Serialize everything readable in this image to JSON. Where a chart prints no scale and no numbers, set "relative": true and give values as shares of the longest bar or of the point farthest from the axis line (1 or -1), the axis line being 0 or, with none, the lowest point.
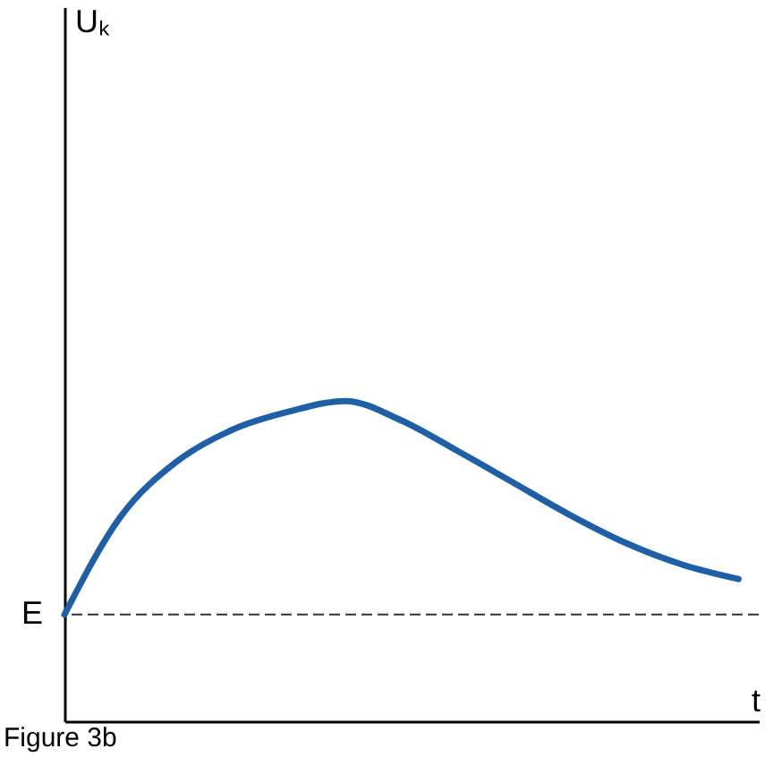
{
  "chart_data": {
    "type": "line",
    "relative": true,
    "xlabel": "t",
    "categories": [
      null,
      null,
      null,
      null,
      null,
      null,
      null,
      null,
      null,
      null,
      null,
      null,
      null
    ],
    "series": [
      {
        "color": "#1f5fa6",
        "values": [
          0.333,
          0.639,
          0.811,
          0.911,
          0.967,
          1,
          0.939,
          0.844,
          0.744,
          0.644,
          0.556,
          0.489,
          0.444
        ]
      }
    ],
    "ref_lines": [
      {
        "axis": "y",
        "value": 0.333,
        "label": "E",
        "color": "#333333",
        "line_style": "dashed"
      }
    ],
    "annotations": [
      "Uₖ",
      "Figure 3b"
    ],
    "grid": false,
    "marker": "none",
    "line_style": "solid"
  }
}
